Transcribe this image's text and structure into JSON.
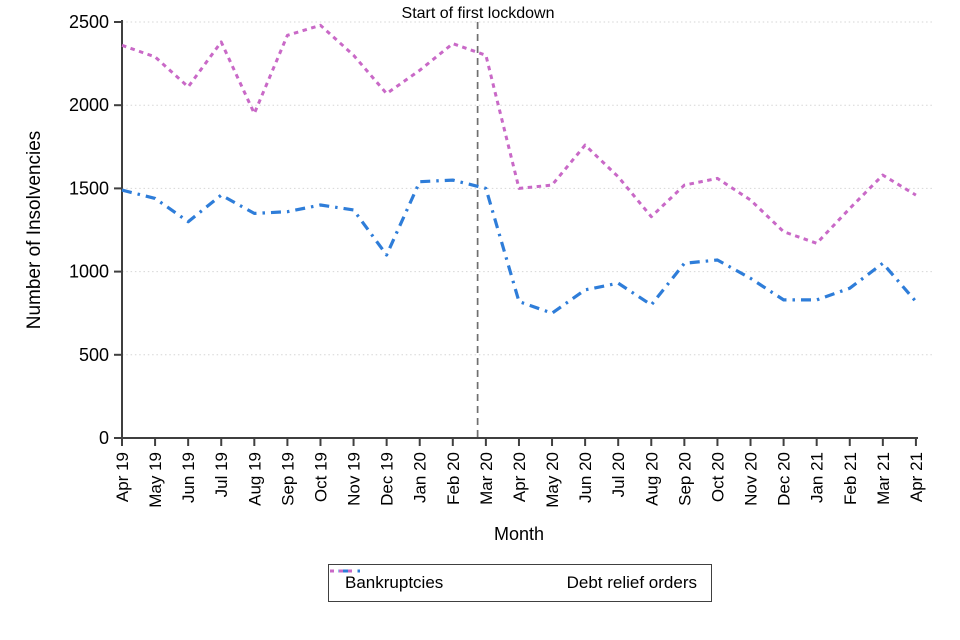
{
  "chart_data": {
    "type": "line",
    "title": "",
    "xlabel": "Month",
    "ylabel": "Number of Insolvencies",
    "x": [
      "Apr 19",
      "May 19",
      "Jun 19",
      "Jul 19",
      "Aug 19",
      "Sep 19",
      "Oct 19",
      "Nov 19",
      "Dec 19",
      "Jan 20",
      "Feb 20",
      "Mar 20",
      "Apr 20",
      "May 20",
      "Jun 20",
      "Jul 20",
      "Aug 20",
      "Sep 20",
      "Oct 20",
      "Nov 20",
      "Dec 20",
      "Jan 21",
      "Feb 21",
      "Mar 21",
      "Apr 21"
    ],
    "series": [
      {
        "name": "Bankruptcies",
        "color": "#2e7dd9",
        "dash": "dash-dot",
        "values": [
          1490,
          1440,
          1300,
          1460,
          1350,
          1360,
          1400,
          1370,
          1100,
          1540,
          1550,
          1500,
          820,
          750,
          890,
          930,
          800,
          1050,
          1070,
          960,
          830,
          830,
          900,
          1050,
          820
        ]
      },
      {
        "name": "Debt relief orders",
        "color": "#c969c7",
        "dash": "dotted",
        "values": [
          2360,
          2290,
          2110,
          2380,
          1950,
          2420,
          2480,
          2300,
          2070,
          2210,
          2370,
          2300,
          1500,
          1520,
          1760,
          1570,
          1330,
          1520,
          1560,
          1430,
          1240,
          1170,
          1380,
          1580,
          1460
        ]
      }
    ],
    "ylim": [
      0,
      2500
    ],
    "yticks": [
      0,
      500,
      1000,
      1500,
      2000,
      2500
    ],
    "grid": "horizontal dotted gridlines",
    "legend_position": "bottom-center boxed",
    "annotation": {
      "label": "Start of first lockdown",
      "x_index": 10.75,
      "between_months": [
        "Feb 20",
        "Mar 20"
      ],
      "line_style": "vertical gray dashed line",
      "line_color": "#6f6f6f"
    }
  },
  "legend": {
    "items": [
      "Bankruptcies",
      "Debt relief orders"
    ]
  }
}
